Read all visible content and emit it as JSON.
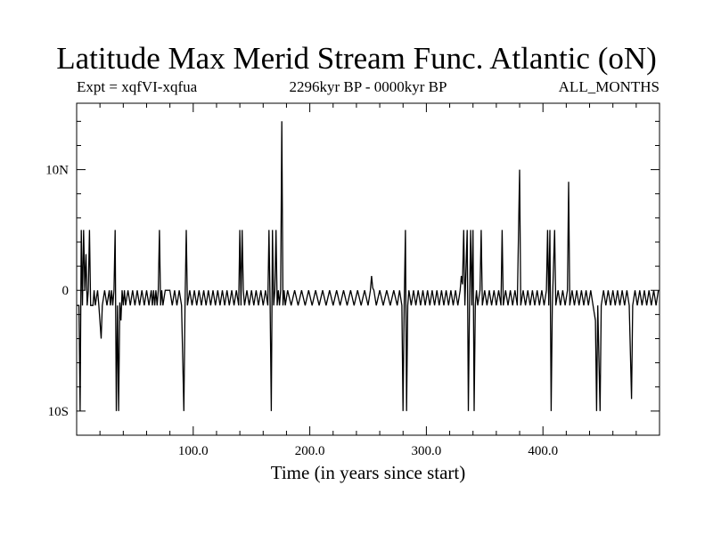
{
  "header": {
    "title": "Latitude Max Merid Stream Func. Atlantic (oN)",
    "expt": "Expt = xqfVI-xqfua",
    "period": "2296kyr BP - 0000kyr BP",
    "months": "ALL_MONTHS"
  },
  "chart_data": {
    "type": "line",
    "title": "Latitude Max Merid Stream Func. Atlantic (oN)",
    "xlabel": "Time (in years since start)",
    "ylabel": "",
    "xlim": [
      0,
      500
    ],
    "ylim": [
      -12,
      15.5
    ],
    "xticks": [
      100,
      200,
      300,
      400
    ],
    "xtick_labels": [
      "100.0",
      "200.0",
      "300.0",
      "400.0"
    ],
    "yticks": [
      10,
      0,
      -10
    ],
    "ytick_labels": [
      "10N",
      "0",
      "10S"
    ],
    "grid": false,
    "series": [
      {
        "values": [
          [
            0,
            -1.25
          ],
          [
            2,
            -1.25
          ],
          [
            3,
            -10
          ],
          [
            4,
            5
          ],
          [
            5,
            -1.25
          ],
          [
            6,
            5
          ],
          [
            7,
            0
          ],
          [
            8,
            3
          ],
          [
            9,
            -1.25
          ],
          [
            10,
            0
          ],
          [
            11,
            5
          ],
          [
            12,
            -1.25
          ],
          [
            14,
            -1.25
          ],
          [
            15,
            0
          ],
          [
            16,
            -1.25
          ],
          [
            18,
            0
          ],
          [
            19,
            -1.25
          ],
          [
            21,
            -4
          ],
          [
            22,
            -1.25
          ],
          [
            24,
            0
          ],
          [
            26,
            -1.25
          ],
          [
            28,
            0
          ],
          [
            29,
            -1.25
          ],
          [
            30,
            0
          ],
          [
            31,
            -1.25
          ],
          [
            32,
            0
          ],
          [
            33,
            5
          ],
          [
            34,
            -10
          ],
          [
            35,
            -1.25
          ],
          [
            36,
            -10
          ],
          [
            37,
            -1
          ],
          [
            38,
            -2.5
          ],
          [
            39,
            0
          ],
          [
            40,
            -1.25
          ],
          [
            41,
            0
          ],
          [
            42,
            -1.25
          ],
          [
            44,
            0
          ],
          [
            46,
            -1.25
          ],
          [
            48,
            0
          ],
          [
            50,
            -1.25
          ],
          [
            52,
            0
          ],
          [
            54,
            -1.25
          ],
          [
            56,
            0
          ],
          [
            58,
            -1.25
          ],
          [
            60,
            0
          ],
          [
            62,
            -1.25
          ],
          [
            64,
            0
          ],
          [
            65,
            -1.25
          ],
          [
            66,
            0
          ],
          [
            67,
            -1.25
          ],
          [
            68,
            0
          ],
          [
            69,
            -1.25
          ],
          [
            70,
            0
          ],
          [
            71,
            5
          ],
          [
            72,
            -1.25
          ],
          [
            73,
            0
          ],
          [
            74,
            -1.25
          ],
          [
            76,
            0
          ],
          [
            80,
            0
          ],
          [
            82,
            -1.25
          ],
          [
            84,
            0
          ],
          [
            86,
            -1.25
          ],
          [
            88,
            0
          ],
          [
            90,
            -1.25
          ],
          [
            92,
            -10
          ],
          [
            93,
            -1.25
          ],
          [
            94,
            5
          ],
          [
            95,
            -1.25
          ],
          [
            97,
            0
          ],
          [
            99,
            -1.25
          ],
          [
            101,
            0
          ],
          [
            103,
            -1.25
          ],
          [
            105,
            0
          ],
          [
            107,
            -1.25
          ],
          [
            109,
            0
          ],
          [
            111,
            -1.25
          ],
          [
            113,
            0
          ],
          [
            115,
            -1.25
          ],
          [
            117,
            0
          ],
          [
            119,
            -1.25
          ],
          [
            121,
            0
          ],
          [
            123,
            -1.25
          ],
          [
            125,
            0
          ],
          [
            127,
            -1.25
          ],
          [
            129,
            0
          ],
          [
            131,
            -1.25
          ],
          [
            133,
            0
          ],
          [
            135,
            -1.25
          ],
          [
            137,
            0
          ],
          [
            139,
            -1.25
          ],
          [
            140,
            5
          ],
          [
            141,
            -1.25
          ],
          [
            142,
            5
          ],
          [
            143,
            0
          ],
          [
            144,
            -1.25
          ],
          [
            146,
            0
          ],
          [
            148,
            -1.25
          ],
          [
            150,
            0
          ],
          [
            152,
            -1.25
          ],
          [
            154,
            0
          ],
          [
            156,
            -1.25
          ],
          [
            158,
            0
          ],
          [
            160,
            -1.25
          ],
          [
            162,
            0
          ],
          [
            164,
            -1.25
          ],
          [
            165,
            5
          ],
          [
            166,
            -1.25
          ],
          [
            167,
            -10
          ],
          [
            168,
            5
          ],
          [
            169,
            -1.25
          ],
          [
            170,
            0
          ],
          [
            171,
            5
          ],
          [
            172,
            -1.25
          ],
          [
            173,
            0
          ],
          [
            174,
            -1.25
          ],
          [
            175,
            0
          ],
          [
            176,
            14
          ],
          [
            177,
            -1.25
          ],
          [
            178,
            0
          ],
          [
            179,
            -1.25
          ],
          [
            181,
            0
          ],
          [
            184,
            -1.25
          ],
          [
            187,
            0
          ],
          [
            190,
            -1.25
          ],
          [
            193,
            0
          ],
          [
            196,
            -1.25
          ],
          [
            199,
            0
          ],
          [
            202,
            -1.25
          ],
          [
            205,
            0
          ],
          [
            208,
            -1.25
          ],
          [
            211,
            0
          ],
          [
            214,
            -1.25
          ],
          [
            217,
            0
          ],
          [
            220,
            -1.25
          ],
          [
            223,
            0
          ],
          [
            226,
            -1.25
          ],
          [
            229,
            0
          ],
          [
            232,
            -1.25
          ],
          [
            235,
            0
          ],
          [
            238,
            -1.25
          ],
          [
            241,
            0
          ],
          [
            244,
            -1.25
          ],
          [
            247,
            0
          ],
          [
            250,
            -1.25
          ],
          [
            252,
            0
          ],
          [
            253,
            1.2
          ],
          [
            254,
            0.2
          ],
          [
            255,
            0
          ],
          [
            257,
            -1.25
          ],
          [
            260,
            0
          ],
          [
            263,
            -1.25
          ],
          [
            266,
            0
          ],
          [
            269,
            -1.25
          ],
          [
            272,
            0
          ],
          [
            275,
            -1.25
          ],
          [
            277,
            0
          ],
          [
            279,
            -1.25
          ],
          [
            280,
            -10
          ],
          [
            281,
            -1.25
          ],
          [
            282,
            5
          ],
          [
            283,
            -10
          ],
          [
            284,
            -1.25
          ],
          [
            285,
            0
          ],
          [
            287,
            -1.25
          ],
          [
            289,
            0
          ],
          [
            291,
            -1.25
          ],
          [
            293,
            0
          ],
          [
            295,
            -1.25
          ],
          [
            297,
            0
          ],
          [
            299,
            -1.25
          ],
          [
            301,
            0
          ],
          [
            303,
            -1.25
          ],
          [
            305,
            0
          ],
          [
            307,
            -1.25
          ],
          [
            309,
            0
          ],
          [
            311,
            -1.25
          ],
          [
            313,
            0
          ],
          [
            315,
            -1.25
          ],
          [
            317,
            0
          ],
          [
            319,
            -1.25
          ],
          [
            321,
            0
          ],
          [
            323,
            -1.25
          ],
          [
            325,
            0
          ],
          [
            327,
            -1.25
          ],
          [
            329,
            0
          ],
          [
            330,
            1.2
          ],
          [
            331,
            0.5
          ],
          [
            332,
            5
          ],
          [
            333,
            -1.25
          ],
          [
            335,
            5
          ],
          [
            336,
            -10
          ],
          [
            337,
            -1.25
          ],
          [
            338,
            5
          ],
          [
            339,
            -1.25
          ],
          [
            340,
            5
          ],
          [
            341,
            -10
          ],
          [
            342,
            -1.25
          ],
          [
            343,
            0
          ],
          [
            344,
            -1.25
          ],
          [
            346,
            0
          ],
          [
            347,
            5
          ],
          [
            348,
            -1.25
          ],
          [
            350,
            0
          ],
          [
            352,
            -1.25
          ],
          [
            354,
            0
          ],
          [
            356,
            -1.25
          ],
          [
            358,
            0
          ],
          [
            360,
            -1.25
          ],
          [
            362,
            0
          ],
          [
            364,
            -1.25
          ],
          [
            365,
            5
          ],
          [
            366,
            -1.25
          ],
          [
            368,
            0
          ],
          [
            370,
            -1.25
          ],
          [
            372,
            0
          ],
          [
            374,
            -1.25
          ],
          [
            376,
            0
          ],
          [
            378,
            -1.25
          ],
          [
            380,
            10
          ],
          [
            381,
            -1.25
          ],
          [
            383,
            0
          ],
          [
            385,
            -1.25
          ],
          [
            387,
            0
          ],
          [
            389,
            -1.25
          ],
          [
            391,
            0
          ],
          [
            393,
            -1.25
          ],
          [
            395,
            0
          ],
          [
            397,
            -1.25
          ],
          [
            399,
            0
          ],
          [
            401,
            -1.25
          ],
          [
            403,
            0
          ],
          [
            404,
            5
          ],
          [
            405,
            -1.25
          ],
          [
            406,
            5
          ],
          [
            407,
            -10
          ],
          [
            408,
            -1.25
          ],
          [
            410,
            5
          ],
          [
            411,
            -1.25
          ],
          [
            413,
            0
          ],
          [
            415,
            -1.25
          ],
          [
            417,
            0
          ],
          [
            419,
            -1.25
          ],
          [
            421,
            0
          ],
          [
            422,
            9
          ],
          [
            423,
            -1.25
          ],
          [
            425,
            0
          ],
          [
            427,
            -1.25
          ],
          [
            429,
            0
          ],
          [
            431,
            -1.25
          ],
          [
            433,
            0
          ],
          [
            435,
            -1.25
          ],
          [
            437,
            0
          ],
          [
            439,
            -1.25
          ],
          [
            441,
            0
          ],
          [
            443,
            -1.25
          ],
          [
            445,
            -2.5
          ],
          [
            446,
            -10
          ],
          [
            447,
            -1.25
          ],
          [
            449,
            -10
          ],
          [
            450,
            -1.25
          ],
          [
            452,
            0
          ],
          [
            454,
            -1.25
          ],
          [
            456,
            0
          ],
          [
            458,
            -1.25
          ],
          [
            460,
            0
          ],
          [
            462,
            -1.25
          ],
          [
            464,
            0
          ],
          [
            466,
            -1.25
          ],
          [
            468,
            0
          ],
          [
            470,
            -1.25
          ],
          [
            472,
            0
          ],
          [
            474,
            -1.25
          ],
          [
            476,
            -9
          ],
          [
            477,
            -1.25
          ],
          [
            479,
            0
          ],
          [
            481,
            -1.25
          ],
          [
            483,
            0
          ],
          [
            485,
            -1.25
          ],
          [
            487,
            0
          ],
          [
            489,
            -1.25
          ],
          [
            491,
            0
          ],
          [
            493,
            -1.25
          ],
          [
            495,
            0
          ],
          [
            497,
            -1.25
          ],
          [
            499,
            0
          ]
        ]
      }
    ]
  }
}
